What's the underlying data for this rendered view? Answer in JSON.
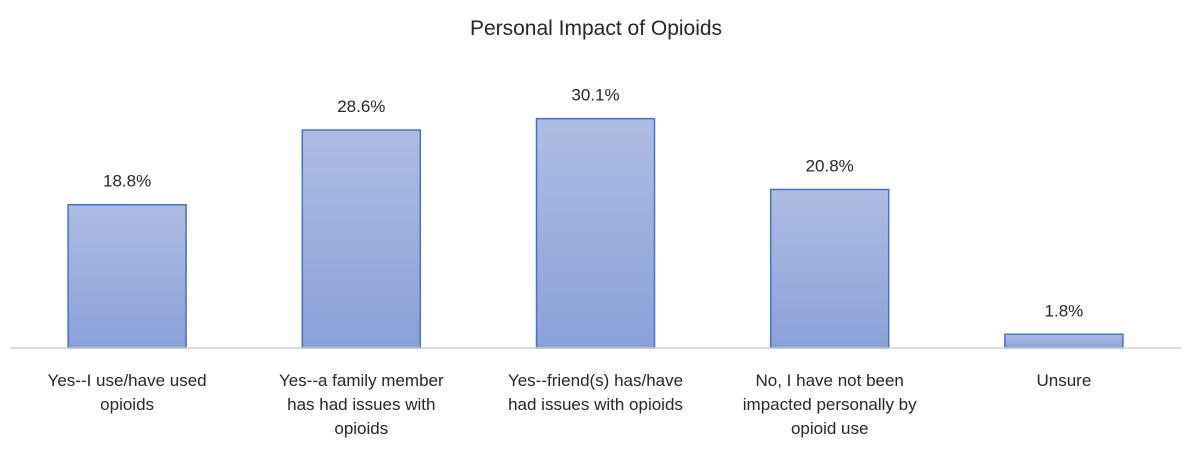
{
  "chart_data": {
    "type": "bar",
    "title": "Personal Impact of Opioids",
    "xlabel": "",
    "ylabel": "",
    "categories": [
      [
        "Yes--I use/have used",
        "opioids"
      ],
      [
        "Yes--a family member",
        "has had issues with",
        "opioids"
      ],
      [
        "Yes--friend(s) has/have",
        "had issues with opioids"
      ],
      [
        "No, I have not been",
        "impacted personally by",
        "opioid use"
      ],
      [
        "Unsure"
      ]
    ],
    "values": [
      18.8,
      28.6,
      30.1,
      20.8,
      1.8
    ],
    "value_labels": [
      "18.8%",
      "28.6%",
      "30.1%",
      "20.8%",
      "1.8%"
    ],
    "ylim": [
      0,
      35
    ],
    "grid": false,
    "legend": "none",
    "colors": {
      "bar_fill_top": "#aebde3",
      "bar_fill_bottom": "#8aa0d8",
      "bar_stroke": "#4472c4",
      "axis": "#d0d0d0",
      "text": "#262626"
    }
  }
}
